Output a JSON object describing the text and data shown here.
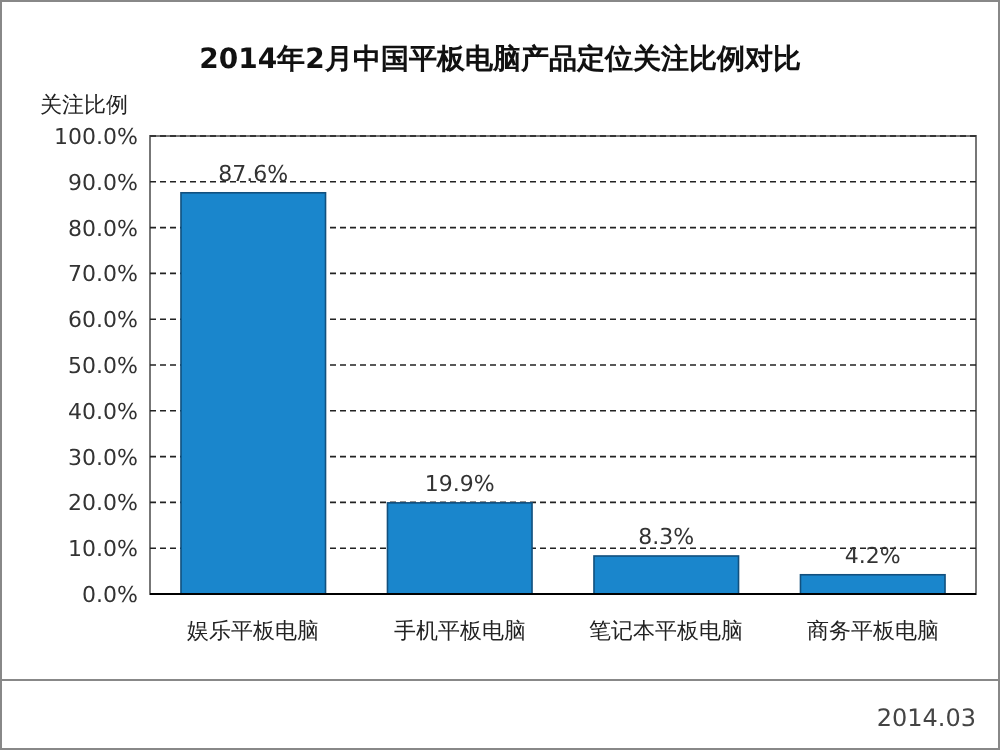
{
  "chart_data": {
    "type": "bar",
    "title": "2014年2月中国平板电脑产品定位关注比例对比",
    "ylabel": "关注比例",
    "categories": [
      "娱乐平板电脑",
      "手机平板电脑",
      "笔记本平板电脑",
      "商务平板电脑"
    ],
    "values": [
      87.6,
      19.9,
      8.3,
      4.2
    ],
    "value_labels": [
      "87.6%",
      "19.9%",
      "8.3%",
      "4.2%"
    ],
    "color": "#1a86cc",
    "ylim": [
      0,
      100
    ],
    "yticks": [
      {
        "value": 0,
        "label": "0.0%"
      },
      {
        "value": 10,
        "label": "10.0%"
      },
      {
        "value": 20,
        "label": "20.0%"
      },
      {
        "value": 30,
        "label": "30.0%"
      },
      {
        "value": 40,
        "label": "40.0%"
      },
      {
        "value": 50,
        "label": "50.0%"
      },
      {
        "value": 60,
        "label": "60.0%"
      },
      {
        "value": 70,
        "label": "70.0%"
      },
      {
        "value": 80,
        "label": "80.0%"
      },
      {
        "value": 90,
        "label": "90.0%"
      },
      {
        "value": 100,
        "label": "100.0%"
      }
    ],
    "grid": "y",
    "annotations": [
      "2014.03"
    ]
  }
}
